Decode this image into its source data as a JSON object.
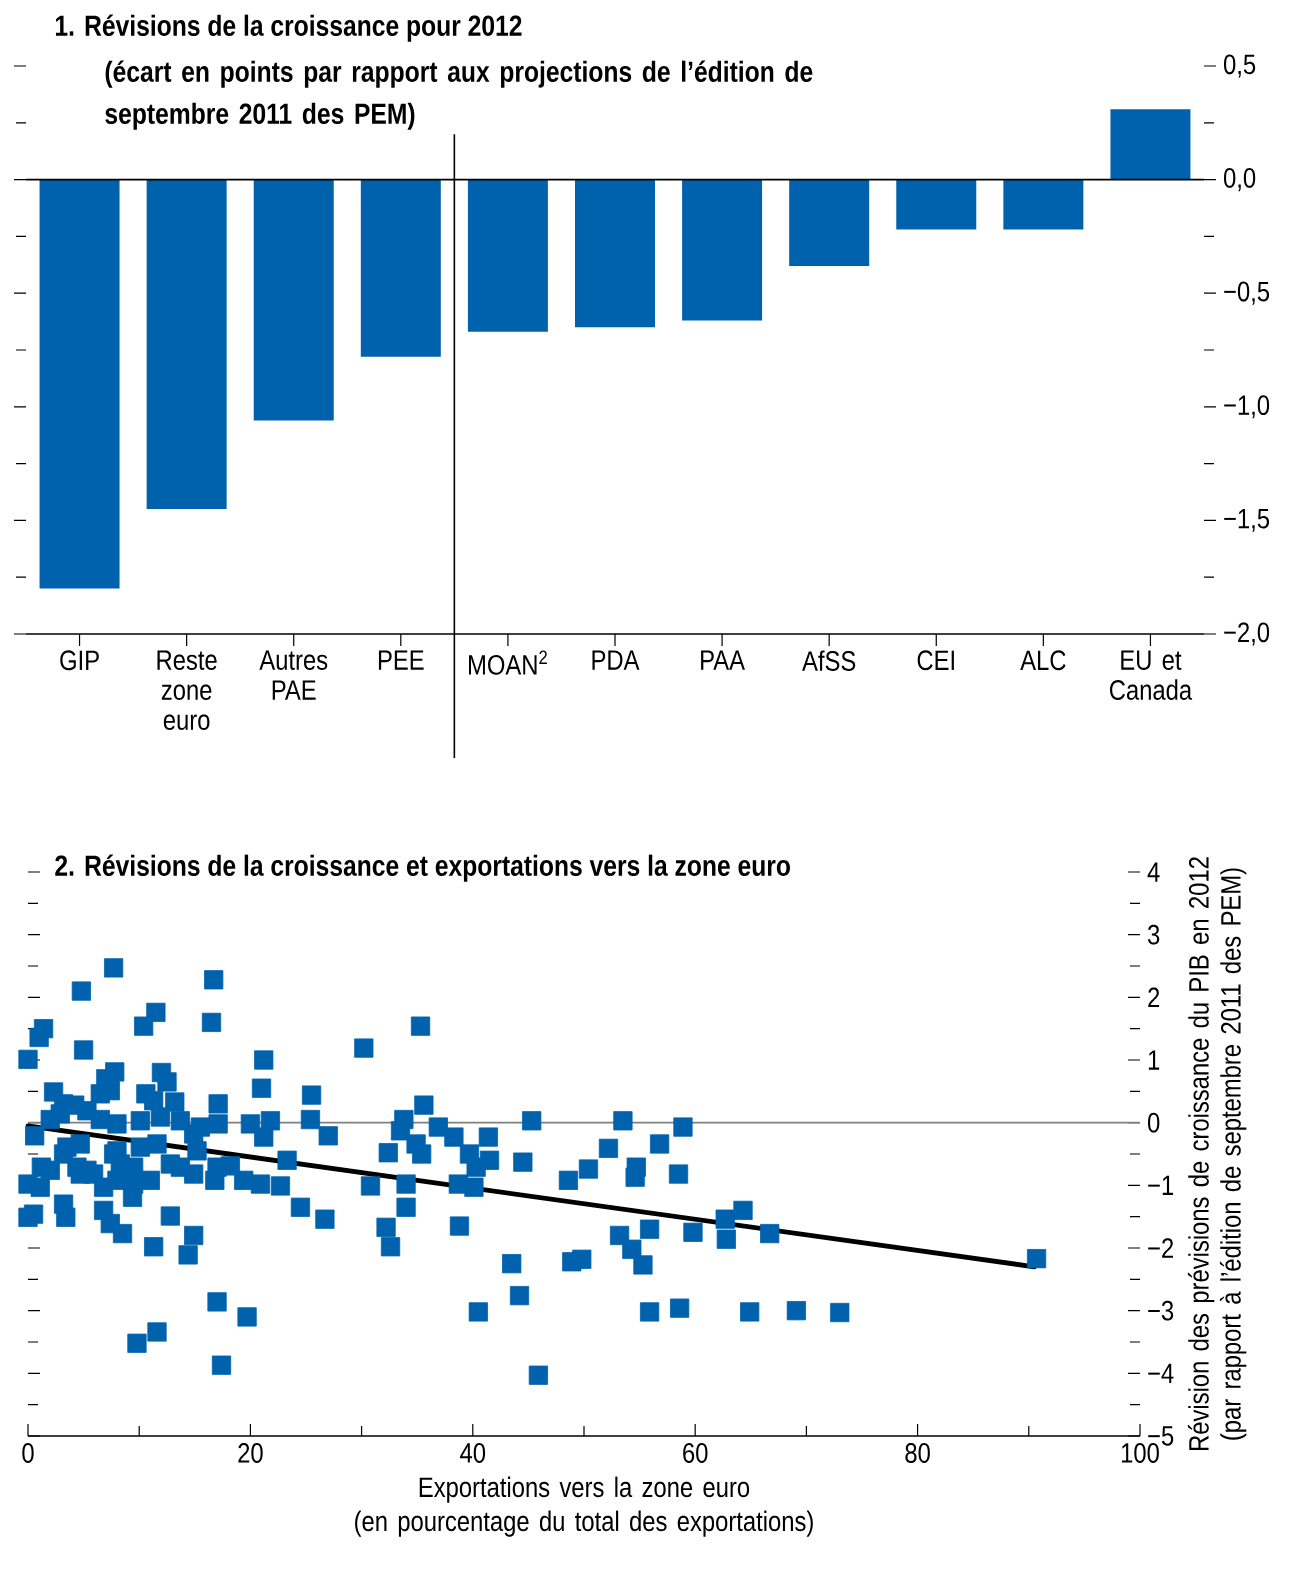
{
  "chart_data": [
    {
      "type": "bar",
      "title": "1. Révisions de la croissance pour 2012",
      "subtitle": "(écart en points par rapport aux projections de l’édition de septembre 2011 des PEM)",
      "categories": [
        "GIP",
        "Reste zone euro",
        "Autres PAE",
        "PEE",
        "MOAN$^{2}$",
        "PDA",
        "PAA",
        "AfSS",
        "CEI",
        "ALC",
        "EU et Canada"
      ],
      "values": [
        -1.8,
        -1.45,
        -1.06,
        -0.78,
        -0.67,
        -0.65,
        -0.62,
        -0.38,
        -0.22,
        -0.22,
        0.31
      ],
      "color": "#0062ad",
      "ylim": [
        -2,
        0.5
      ],
      "yticks": [
        {
          "value": -2,
          "label": "−2,0"
        },
        {
          "value": -1.5,
          "label": "−1,5"
        },
        {
          "value": -1,
          "label": "−1,0"
        },
        {
          "value": -0.5,
          "label": "−0,5"
        },
        {
          "value": 0,
          "label": "0,0"
        },
        {
          "value": 0.5,
          "label": "0,5"
        }
      ],
      "ref_lines": [
        {
          "axis": "y",
          "value": 0,
          "color": "#000000"
        }
      ]
    },
    {
      "type": "scatter",
      "title": "2. Révisions de la croissance et exportations vers la zone euro",
      "xlabel": "Exportations vers la zone euro (en pourcentage du total des exportations)",
      "ylabel": "Révision des prévisions de croissance du PIB en 2012 (par rapport à l’édition de septembre 2011 des PEM)",
      "marker": "square",
      "series": [
        {
          "type": "scatter",
          "color": "#0062ad",
          "x": [
            7.7,
            4.8,
            16.7,
            1.4,
            1.0,
            11.5,
            10.4,
            16.5,
            5.0,
            0,
            30.2,
            21.2,
            21.0,
            7.8,
            7.0,
            6.5,
            7.4,
            2.3,
            12.0,
            12.5,
            10.6,
            11.3,
            13.2,
            25.5,
            17.1,
            3.2,
            4.2,
            5.3,
            2.9,
            2.0,
            6.5,
            8.0,
            10.1,
            11.9,
            13.7,
            15.5,
            17.1,
            20.0,
            21.8,
            25.4,
            27.0,
            21.2,
            0.6,
            3.5,
            4.7,
            3.2,
            7.7,
            8.0,
            10.1,
            11.6,
            14.9,
            15.2,
            23.3,
            1.2,
            2.0,
            4.4,
            5.3,
            5.9,
            8.3,
            9.5,
            12.8,
            13.7,
            17.0,
            18.2,
            14.9,
            0,
            1.1,
            4.7,
            6.8,
            8.0,
            9.5,
            11.0,
            16.8,
            19.4,
            20.9,
            22.7,
            30.8,
            9.4,
            3.2,
            6.8,
            3.4,
            0.5,
            0,
            24.5,
            26.7,
            12.8,
            32.4,
            7.4,
            8.5,
            14.9,
            11.3,
            14.4,
            32.2,
            32.6,
            17.0,
            19.7,
            11.6,
            9.8,
            17.4,
            35.3,
            35.6,
            33.8,
            33.5,
            36.9,
            38.3,
            34.9,
            35.4,
            45.3,
            41.4,
            39.7,
            41.5,
            40.3,
            44.5,
            53.5,
            58.9,
            56.8,
            52.2,
            50.4,
            48.6,
            54.7,
            54.6,
            58.5,
            34.0,
            38.7,
            40.1,
            34.0,
            38.8,
            43.5,
            44.2,
            40.5,
            45.9,
            48.9,
            49.8,
            53.2,
            54.3,
            55.3,
            55.9,
            59.8,
            55.9,
            58.6,
            62.7,
            64.3,
            62.8,
            64.9,
            66.7,
            69.1,
            73.0,
            90.7
          ],
          "values": [
            2.47,
            2.1,
            2.28,
            1.5,
            1.36,
            1.76,
            1.54,
            1.6,
            1.16,
            1.01,
            1.19,
            1.0,
            0.55,
            0.81,
            0.7,
            0.46,
            0.51,
            0.49,
            0.8,
            0.65,
            0.46,
            0.35,
            0.33,
            0.44,
            0.3,
            0.3,
            0.28,
            0.19,
            0.14,
            0.05,
            0.05,
            -0.02,
            0.03,
            0.09,
            0.03,
            -0.07,
            -0.02,
            -0.02,
            0.03,
            0.05,
            -0.21,
            -0.23,
            -0.21,
            -0.39,
            -0.34,
            -0.5,
            -0.5,
            -0.45,
            -0.39,
            -0.34,
            -0.18,
            -0.45,
            -0.6,
            -0.71,
            -0.76,
            -0.71,
            -0.76,
            -0.82,
            -0.66,
            -0.71,
            -0.66,
            -0.71,
            -0.71,
            -0.69,
            -0.82,
            -0.98,
            -1.03,
            -0.82,
            -1.03,
            -0.92,
            -0.98,
            -0.92,
            -0.92,
            -0.92,
            -0.98,
            -1.01,
            -1.01,
            -1.19,
            -1.3,
            -1.4,
            -1.51,
            -1.46,
            -1.51,
            -1.35,
            -1.54,
            -1.49,
            -0.48,
            -1.61,
            -1.77,
            -1.8,
            -1.98,
            -2.11,
            -1.67,
            -1.98,
            -2.86,
            -3.1,
            -3.34,
            -3.52,
            -3.87,
            1.54,
            0.28,
            0.05,
            -0.13,
            -0.07,
            -0.23,
            -0.34,
            -0.5,
            0.03,
            -0.23,
            -0.5,
            -0.6,
            -0.71,
            -0.63,
            0.03,
            -0.07,
            -0.34,
            -0.41,
            -0.74,
            -0.92,
            -0.71,
            -0.87,
            -0.82,
            -0.98,
            -0.98,
            -1.03,
            -1.35,
            -1.65,
            -2.25,
            -2.76,
            -3.02,
            -4.03,
            -2.22,
            -2.18,
            -1.8,
            -2.02,
            -2.27,
            -1.7,
            -1.75,
            -3.02,
            -2.96,
            -1.54,
            -1.4,
            -1.86,
            -3.02,
            -1.77,
            -3.0,
            -3.03,
            -2.17
          ]
        },
        {
          "type": "line",
          "color": "#000000",
          "marker": "none",
          "x": [
            0,
            90.5
          ],
          "values": [
            -0.05,
            -2.3
          ]
        }
      ],
      "xlim": [
        0,
        100
      ],
      "xticks": [
        0,
        20,
        40,
        60,
        80,
        100
      ],
      "ylim": [
        -5,
        4
      ],
      "yticks": [
        {
          "value": -5,
          "label": "−5"
        },
        {
          "value": -4,
          "label": "−4"
        },
        {
          "value": -3,
          "label": "−3"
        },
        {
          "value": -2,
          "label": "−2"
        },
        {
          "value": -1,
          "label": "−1"
        },
        0,
        1,
        2,
        3,
        4
      ],
      "ref_lines": [
        {
          "axis": "y",
          "value": 0,
          "color": "#808080"
        }
      ]
    }
  ]
}
